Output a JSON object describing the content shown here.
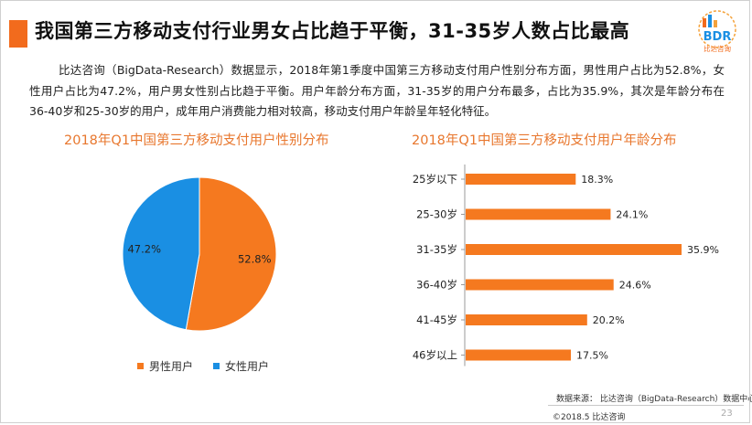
{
  "header": {
    "title": "我国第三方移动支付行业男女占比趋于平衡，31-35岁人数占比最高",
    "accent_color": "#f26b1d"
  },
  "logo": {
    "text": "BDR",
    "subtitle": "比达咨询"
  },
  "intro": {
    "text": "比达咨询（BigData-Research）数据显示，2018年第1季度中国第三方移动支付用户性别分布方面，男性用户占比为52.8%，女性用户占比为47.2%，用户男女性别占比趋于平衡。用户年龄分布方面，31-35岁的用户分布最多，占比为35.9%，其次是年龄分布在36-40岁和25-30岁的用户，成年用户消费能力相对较高，移动支付用户年龄呈年轻化特征。"
  },
  "chart_data": [
    {
      "type": "pie",
      "title": "2018年Q1中国第三方移动支付用户性别分布",
      "categories": [
        "男性用户",
        "女性用户"
      ],
      "values": [
        52.8,
        47.2
      ],
      "labels": [
        "52.8%",
        "47.2%"
      ],
      "colors": [
        "#f5791f",
        "#1a8fe3"
      ],
      "legend": "bottom"
    },
    {
      "type": "bar",
      "orientation": "horizontal",
      "title": "2018年Q1中国第三方移动支付用户年龄分布",
      "categories": [
        "25岁以下",
        "25-30岁",
        "31-35岁",
        "36-40岁",
        "41-45岁",
        "46岁以上"
      ],
      "values": [
        18.3,
        24.1,
        35.9,
        24.6,
        20.2,
        17.5
      ],
      "labels": [
        "18.3%",
        "24.1%",
        "35.9%",
        "24.6%",
        "20.2%",
        "17.5%"
      ],
      "color": "#f5791f",
      "xlim": [
        0,
        35.9
      ]
    }
  ],
  "footer": {
    "source": "数据来源：  比达咨询（BigData-Research）数据中心",
    "copyright": "©2018.5   比达咨询",
    "page_number": "23"
  }
}
